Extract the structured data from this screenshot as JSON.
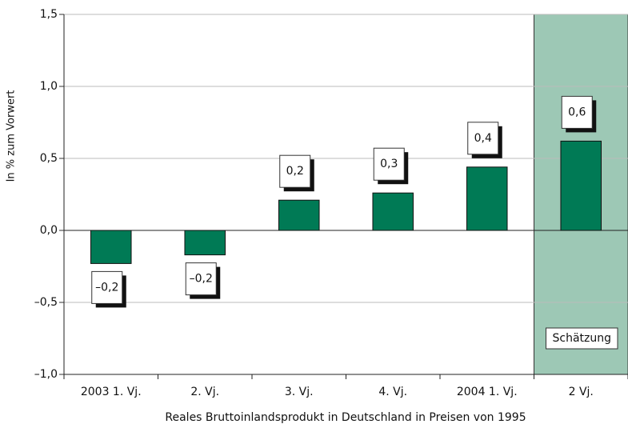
{
  "chart_data": {
    "type": "bar",
    "x_label": "Reales Bruttoinlandsprodukt in Deutschland in Preisen von 1995",
    "y_label": "In % zum Vorwert",
    "categories": [
      "2003 1. Vj.",
      "2. Vj.",
      "3. Vj.",
      "4. Vj.",
      "2004 1. Vj.",
      "2 Vj."
    ],
    "values": [
      -0.23,
      -0.17,
      0.21,
      0.26,
      0.44,
      0.62
    ],
    "value_labels": [
      "–0,2",
      "–0,2",
      "0,2",
      "0,3",
      "0,4",
      "0,6"
    ],
    "color": "#007a55",
    "ylim": [
      -1.0,
      1.5
    ],
    "yticks": [
      {
        "value": -1.0,
        "label": "–1,0"
      },
      {
        "value": -0.5,
        "label": "–0,5"
      },
      {
        "value": 0,
        "label": "0,0"
      },
      {
        "value": 0.5,
        "label": "0,5"
      },
      {
        "value": 1.0,
        "label": "1,0"
      },
      {
        "value": 1.5,
        "label": "1,5"
      }
    ],
    "grid": true,
    "shade": {
      "category_index": 5,
      "color": "#9dc8b5",
      "label": "Schätzung"
    }
  }
}
